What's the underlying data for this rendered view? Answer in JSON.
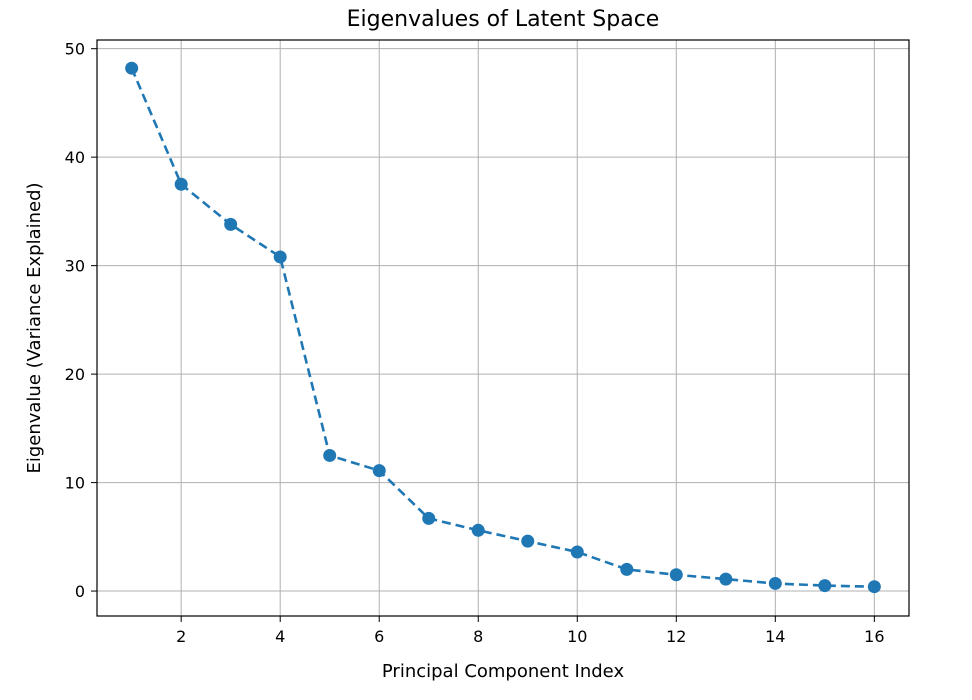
{
  "chart_data": {
    "type": "line",
    "title": "Eigenvalues of Latent Space",
    "xlabel": "Principal Component Index",
    "ylabel": "Eigenvalue (Variance Explained)",
    "xlim": [
      0.3,
      16.7
    ],
    "ylim": [
      -2.3,
      50.8
    ],
    "xticks": [
      2,
      4,
      6,
      8,
      10,
      12,
      14,
      16
    ],
    "yticks": [
      0,
      10,
      20,
      30,
      40,
      50
    ],
    "grid": true,
    "line_style": "dashed",
    "marker": "circle",
    "color": "#1f77b4",
    "series": [
      {
        "x": [
          1,
          2,
          3,
          4,
          5,
          6,
          7,
          8,
          9,
          10,
          11,
          12,
          13,
          14,
          15,
          16
        ],
        "values": [
          48.2,
          37.5,
          33.8,
          30.8,
          12.5,
          11.1,
          6.7,
          5.6,
          4.6,
          3.6,
          2.0,
          1.5,
          1.1,
          0.7,
          0.5,
          0.4
        ]
      }
    ]
  }
}
